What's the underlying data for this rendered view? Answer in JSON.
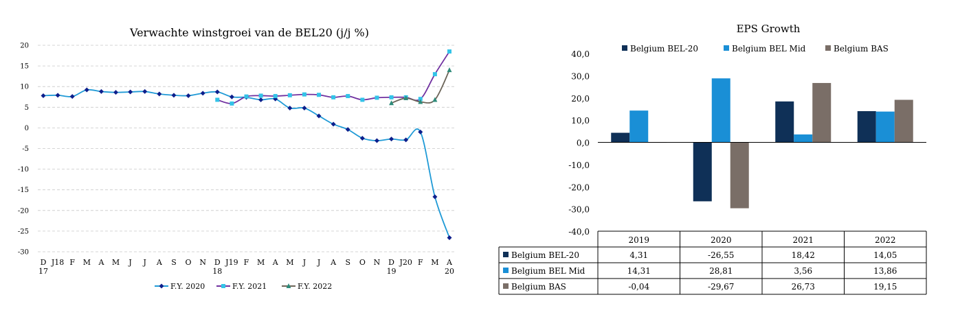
{
  "chart_data": [
    {
      "type": "line",
      "title": "Verwachte winstgroei van de BEL20 (j/j %)",
      "ylim": [
        -30,
        20
      ],
      "yticks": [
        20,
        15,
        10,
        5,
        0,
        -5,
        -10,
        -15,
        -20,
        -25,
        -30
      ],
      "x_tick_labels": [
        "D",
        "J18",
        "F",
        "M",
        "A",
        "M",
        "J",
        "J",
        "A",
        "S",
        "O",
        "N",
        "D",
        "J19",
        "F",
        "M",
        "A",
        "M",
        "J",
        "J",
        "A",
        "S",
        "O",
        "N",
        "D",
        "J20",
        "F",
        "M",
        "A"
      ],
      "x_sub_labels": [
        {
          "index": 0,
          "text": "17"
        },
        {
          "index": 12,
          "text": "18"
        },
        {
          "index": 24,
          "text": "19"
        },
        {
          "index": 28,
          "text": "20"
        }
      ],
      "grid": "horizontal dashed",
      "legend_position": "bottom",
      "series": [
        {
          "name": "F.Y. 2020",
          "color": "#0d1f8c",
          "marker": "diamond",
          "start_index": 0,
          "values": [
            7.8,
            7.9,
            7.6,
            9.2,
            8.8,
            8.6,
            8.7,
            8.8,
            8.2,
            7.9,
            7.8,
            8.4,
            8.7,
            7.5,
            7.4,
            6.8,
            7.0,
            4.8,
            4.8,
            2.9,
            0.9,
            -0.4,
            -2.5,
            -3.1,
            -2.7,
            -2.9,
            -1.0,
            -16.7,
            -26.6
          ]
        },
        {
          "name": "F.Y. 2021",
          "color": "#7030a0",
          "marker_color": "#33c3e8",
          "marker": "square",
          "start_index": 12,
          "values": [
            6.8,
            5.9,
            7.6,
            7.8,
            7.7,
            7.9,
            8.1,
            8.0,
            7.4,
            7.7,
            6.8,
            7.3,
            7.4,
            7.4,
            7.0,
            13.0,
            18.5
          ]
        },
        {
          "name": "F.Y. 2022",
          "color": "#6b6458",
          "marker_color": "#2e8b7a",
          "marker": "triangle",
          "start_index": 24,
          "values": [
            6.0,
            7.2,
            6.3,
            6.8,
            14.0
          ]
        }
      ]
    },
    {
      "type": "bar",
      "title": "EPS Growth",
      "categories": [
        "2019",
        "2020",
        "2021",
        "2022"
      ],
      "ylim": [
        -40,
        40
      ],
      "yticks": [
        "40,0",
        "30,0",
        "20,0",
        "10,0",
        "0,0",
        "-10,0",
        "-20,0",
        "-30,0",
        "-40,0"
      ],
      "legend_position": "top",
      "series": [
        {
          "name": "Belgium BEL-20",
          "color": "#0f3057",
          "values": [
            4.31,
            -26.55,
            18.42,
            14.05
          ],
          "labels": [
            "4,31",
            "-26,55",
            "18,42",
            "14,05"
          ]
        },
        {
          "name": "Belgium BEL Mid",
          "color": "#1a8fd6",
          "values": [
            14.31,
            28.81,
            3.56,
            13.86
          ],
          "labels": [
            "14,31",
            "28,81",
            "3,56",
            "13,86"
          ]
        },
        {
          "name": "Belgium BAS",
          "color": "#7a6e67",
          "values": [
            -0.04,
            -29.67,
            26.73,
            19.15
          ],
          "labels": [
            "-0,04",
            "-29,67",
            "26,73",
            "19,15"
          ]
        }
      ]
    }
  ]
}
